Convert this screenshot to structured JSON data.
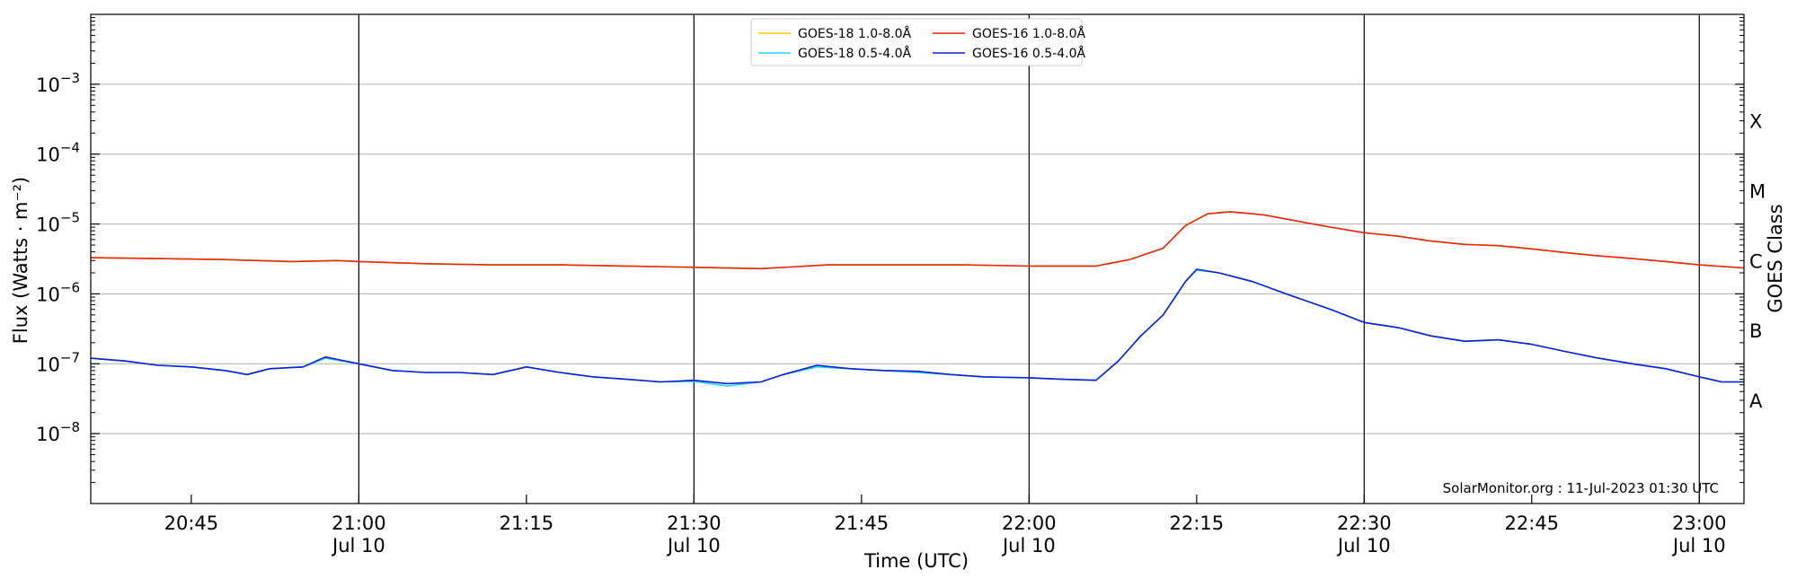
{
  "chart_data": {
    "type": "line",
    "xlabel": "Time (UTC)",
    "ylabel": "Flux (Watts · m⁻²)",
    "ylabel_right": "GOES Class",
    "y_scale": "log",
    "ylim": [
      1e-09,
      0.01
    ],
    "x_range": [
      "20:36",
      "23:04"
    ],
    "grid": "horizontal at decades, vertical at half-hours",
    "legend_placement": "top-center",
    "watermark": "SolarMonitor.org : 11-Jul-2023 01:30 UTC",
    "y_ticks": [
      {
        "value": 1e-08,
        "base": "10",
        "exp": "−8"
      },
      {
        "value": 1e-07,
        "base": "10",
        "exp": "−7"
      },
      {
        "value": 1e-06,
        "base": "10",
        "exp": "−6"
      },
      {
        "value": 1e-05,
        "base": "10",
        "exp": "−5"
      },
      {
        "value": 0.0001,
        "base": "10",
        "exp": "−4"
      },
      {
        "value": 0.001,
        "base": "10",
        "exp": "−3"
      }
    ],
    "x_ticks": [
      {
        "time": "20:45",
        "label": "20:45",
        "date": ""
      },
      {
        "time": "21:00",
        "label": "21:00",
        "date": "Jul 10"
      },
      {
        "time": "21:15",
        "label": "21:15",
        "date": ""
      },
      {
        "time": "21:30",
        "label": "21:30",
        "date": "Jul 10"
      },
      {
        "time": "21:45",
        "label": "21:45",
        "date": ""
      },
      {
        "time": "22:00",
        "label": "22:00",
        "date": "Jul 10"
      },
      {
        "time": "22:15",
        "label": "22:15",
        "date": ""
      },
      {
        "time": "22:30",
        "label": "22:30",
        "date": "Jul 10"
      },
      {
        "time": "22:45",
        "label": "22:45",
        "date": ""
      },
      {
        "time": "23:00",
        "label": "23:00",
        "date": "Jul 10"
      }
    ],
    "goes_classes": [
      {
        "label": "A",
        "flux": 3e-08
      },
      {
        "label": "B",
        "flux": 3e-07
      },
      {
        "label": "C",
        "flux": 3e-06
      },
      {
        "label": "M",
        "flux": 3e-05
      },
      {
        "label": "X",
        "flux": 0.0003
      }
    ],
    "series": [
      {
        "name": "GOES-18 1.0-8.0Å",
        "color": "#ffd000",
        "points": [
          [
            "20:36",
            3.3e-06
          ],
          [
            "20:42",
            3.2e-06
          ],
          [
            "20:48",
            3.1e-06
          ],
          [
            "20:54",
            2.9e-06
          ],
          [
            "20:58",
            3e-06
          ],
          [
            "21:00",
            2.9e-06
          ],
          [
            "21:06",
            2.7e-06
          ],
          [
            "21:12",
            2.6e-06
          ],
          [
            "21:18",
            2.6e-06
          ],
          [
            "21:24",
            2.5e-06
          ],
          [
            "21:30",
            2.4e-06
          ],
          [
            "21:36",
            2.3e-06
          ],
          [
            "21:42",
            2.6e-06
          ],
          [
            "21:48",
            2.6e-06
          ],
          [
            "21:54",
            2.6e-06
          ],
          [
            "22:00",
            2.5e-06
          ],
          [
            "22:06",
            2.5e-06
          ],
          [
            "22:09",
            3.1e-06
          ],
          [
            "22:12",
            4.5e-06
          ],
          [
            "22:14",
            9.5e-06
          ],
          [
            "22:16",
            1.4e-05
          ],
          [
            "22:18",
            1.5e-05
          ],
          [
            "22:21",
            1.35e-05
          ],
          [
            "22:24",
            1.1e-05
          ],
          [
            "22:27",
            9e-06
          ],
          [
            "22:30",
            7.5e-06
          ],
          [
            "22:33",
            6.7e-06
          ],
          [
            "22:36",
            5.7e-06
          ],
          [
            "22:39",
            5.1e-06
          ],
          [
            "22:42",
            4.9e-06
          ],
          [
            "22:45",
            4.4e-06
          ],
          [
            "22:48",
            3.9e-06
          ],
          [
            "22:51",
            3.5e-06
          ],
          [
            "22:54",
            3.2e-06
          ],
          [
            "22:57",
            2.9e-06
          ],
          [
            "23:00",
            2.6e-06
          ],
          [
            "23:04",
            2.35e-06
          ]
        ]
      },
      {
        "name": "GOES-16 1.0-8.0Å",
        "color": "#e8250f",
        "points": [
          [
            "20:36",
            3.3e-06
          ],
          [
            "20:42",
            3.2e-06
          ],
          [
            "20:48",
            3.1e-06
          ],
          [
            "20:54",
            2.9e-06
          ],
          [
            "20:58",
            3e-06
          ],
          [
            "21:00",
            2.9e-06
          ],
          [
            "21:06",
            2.7e-06
          ],
          [
            "21:12",
            2.6e-06
          ],
          [
            "21:18",
            2.6e-06
          ],
          [
            "21:24",
            2.5e-06
          ],
          [
            "21:30",
            2.4e-06
          ],
          [
            "21:36",
            2.3e-06
          ],
          [
            "21:42",
            2.6e-06
          ],
          [
            "21:48",
            2.6e-06
          ],
          [
            "21:54",
            2.6e-06
          ],
          [
            "22:00",
            2.5e-06
          ],
          [
            "22:06",
            2.5e-06
          ],
          [
            "22:09",
            3.1e-06
          ],
          [
            "22:12",
            4.5e-06
          ],
          [
            "22:14",
            9.5e-06
          ],
          [
            "22:16",
            1.4e-05
          ],
          [
            "22:18",
            1.5e-05
          ],
          [
            "22:21",
            1.35e-05
          ],
          [
            "22:24",
            1.1e-05
          ],
          [
            "22:27",
            9e-06
          ],
          [
            "22:30",
            7.5e-06
          ],
          [
            "22:33",
            6.7e-06
          ],
          [
            "22:36",
            5.7e-06
          ],
          [
            "22:39",
            5.1e-06
          ],
          [
            "22:42",
            4.9e-06
          ],
          [
            "22:45",
            4.4e-06
          ],
          [
            "22:48",
            3.9e-06
          ],
          [
            "22:51",
            3.5e-06
          ],
          [
            "22:54",
            3.2e-06
          ],
          [
            "22:57",
            2.9e-06
          ],
          [
            "23:00",
            2.6e-06
          ],
          [
            "23:04",
            2.35e-06
          ]
        ]
      },
      {
        "name": "GOES-18 0.5-4.0Å",
        "color": "#22d4f0",
        "points": [
          [
            "20:36",
            1.2e-07
          ],
          [
            "20:39",
            1.1e-07
          ],
          [
            "20:42",
            9.5e-08
          ],
          [
            "20:45",
            9e-08
          ],
          [
            "20:48",
            8e-08
          ],
          [
            "20:50",
            7e-08
          ],
          [
            "20:52",
            8.5e-08
          ],
          [
            "20:55",
            9e-08
          ],
          [
            "20:57",
            1.2e-07
          ],
          [
            "21:00",
            1e-07
          ],
          [
            "21:03",
            8e-08
          ],
          [
            "21:06",
            7.5e-08
          ],
          [
            "21:09",
            7.5e-08
          ],
          [
            "21:12",
            7e-08
          ],
          [
            "21:15",
            9e-08
          ],
          [
            "21:18",
            7.5e-08
          ],
          [
            "21:21",
            6.5e-08
          ],
          [
            "21:24",
            6e-08
          ],
          [
            "21:27",
            5.5e-08
          ],
          [
            "21:30",
            5.6e-08
          ],
          [
            "21:33",
            4.8e-08
          ],
          [
            "21:36",
            5.5e-08
          ],
          [
            "21:38",
            7e-08
          ],
          [
            "21:41",
            9e-08
          ],
          [
            "21:44",
            8.5e-08
          ],
          [
            "21:47",
            8e-08
          ],
          [
            "21:50",
            7.5e-08
          ],
          [
            "21:53",
            7e-08
          ],
          [
            "21:56",
            6.5e-08
          ],
          [
            "22:00",
            6.3e-08
          ],
          [
            "22:03",
            6e-08
          ],
          [
            "22:06",
            5.8e-08
          ],
          [
            "22:08",
            1.1e-07
          ],
          [
            "22:10",
            2.5e-07
          ],
          [
            "22:12",
            5e-07
          ],
          [
            "22:14",
            1.5e-06
          ],
          [
            "22:15",
            2.2e-06
          ],
          [
            "22:17",
            2e-06
          ],
          [
            "22:20",
            1.5e-06
          ],
          [
            "22:23",
            1e-06
          ],
          [
            "22:27",
            6e-07
          ],
          [
            "22:30",
            3.9e-07
          ],
          [
            "22:33",
            3.3e-07
          ],
          [
            "22:36",
            2.5e-07
          ],
          [
            "22:39",
            2.1e-07
          ],
          [
            "22:42",
            2.2e-07
          ],
          [
            "22:45",
            1.9e-07
          ],
          [
            "22:48",
            1.5e-07
          ],
          [
            "22:51",
            1.2e-07
          ],
          [
            "22:54",
            1e-07
          ],
          [
            "22:57",
            8.5e-08
          ],
          [
            "23:00",
            6.5e-08
          ],
          [
            "23:02",
            5.5e-08
          ],
          [
            "23:04",
            5.5e-08
          ]
        ]
      },
      {
        "name": "GOES-16 0.5-4.0Å",
        "color": "#0a1fd8",
        "points": [
          [
            "20:36",
            1.2e-07
          ],
          [
            "20:39",
            1.1e-07
          ],
          [
            "20:42",
            9.5e-08
          ],
          [
            "20:45",
            9e-08
          ],
          [
            "20:48",
            8e-08
          ],
          [
            "20:50",
            7e-08
          ],
          [
            "20:52",
            8.5e-08
          ],
          [
            "20:55",
            9e-08
          ],
          [
            "20:57",
            1.25e-07
          ],
          [
            "21:00",
            1e-07
          ],
          [
            "21:03",
            8e-08
          ],
          [
            "21:06",
            7.5e-08
          ],
          [
            "21:09",
            7.5e-08
          ],
          [
            "21:12",
            7e-08
          ],
          [
            "21:15",
            9e-08
          ],
          [
            "21:18",
            7.5e-08
          ],
          [
            "21:21",
            6.5e-08
          ],
          [
            "21:24",
            6e-08
          ],
          [
            "21:27",
            5.5e-08
          ],
          [
            "21:30",
            5.8e-08
          ],
          [
            "21:33",
            5.2e-08
          ],
          [
            "21:36",
            5.5e-08
          ],
          [
            "21:38",
            7e-08
          ],
          [
            "21:41",
            9.5e-08
          ],
          [
            "21:44",
            8.5e-08
          ],
          [
            "21:47",
            8e-08
          ],
          [
            "21:50",
            7.8e-08
          ],
          [
            "21:53",
            7e-08
          ],
          [
            "21:56",
            6.5e-08
          ],
          [
            "22:00",
            6.3e-08
          ],
          [
            "22:03",
            6e-08
          ],
          [
            "22:06",
            5.8e-08
          ],
          [
            "22:08",
            1.1e-07
          ],
          [
            "22:10",
            2.5e-07
          ],
          [
            "22:12",
            5e-07
          ],
          [
            "22:14",
            1.5e-06
          ],
          [
            "22:15",
            2.25e-06
          ],
          [
            "22:17",
            2e-06
          ],
          [
            "22:20",
            1.5e-06
          ],
          [
            "22:23",
            1e-06
          ],
          [
            "22:27",
            6e-07
          ],
          [
            "22:30",
            3.9e-07
          ],
          [
            "22:33",
            3.3e-07
          ],
          [
            "22:36",
            2.5e-07
          ],
          [
            "22:39",
            2.1e-07
          ],
          [
            "22:42",
            2.2e-07
          ],
          [
            "22:45",
            1.9e-07
          ],
          [
            "22:48",
            1.5e-07
          ],
          [
            "22:51",
            1.2e-07
          ],
          [
            "22:54",
            1e-07
          ],
          [
            "22:57",
            8.5e-08
          ],
          [
            "23:00",
            6.5e-08
          ],
          [
            "23:02",
            5.5e-08
          ],
          [
            "23:04",
            5.5e-08
          ]
        ]
      }
    ],
    "legend_order": [
      0,
      2,
      1,
      3
    ]
  }
}
